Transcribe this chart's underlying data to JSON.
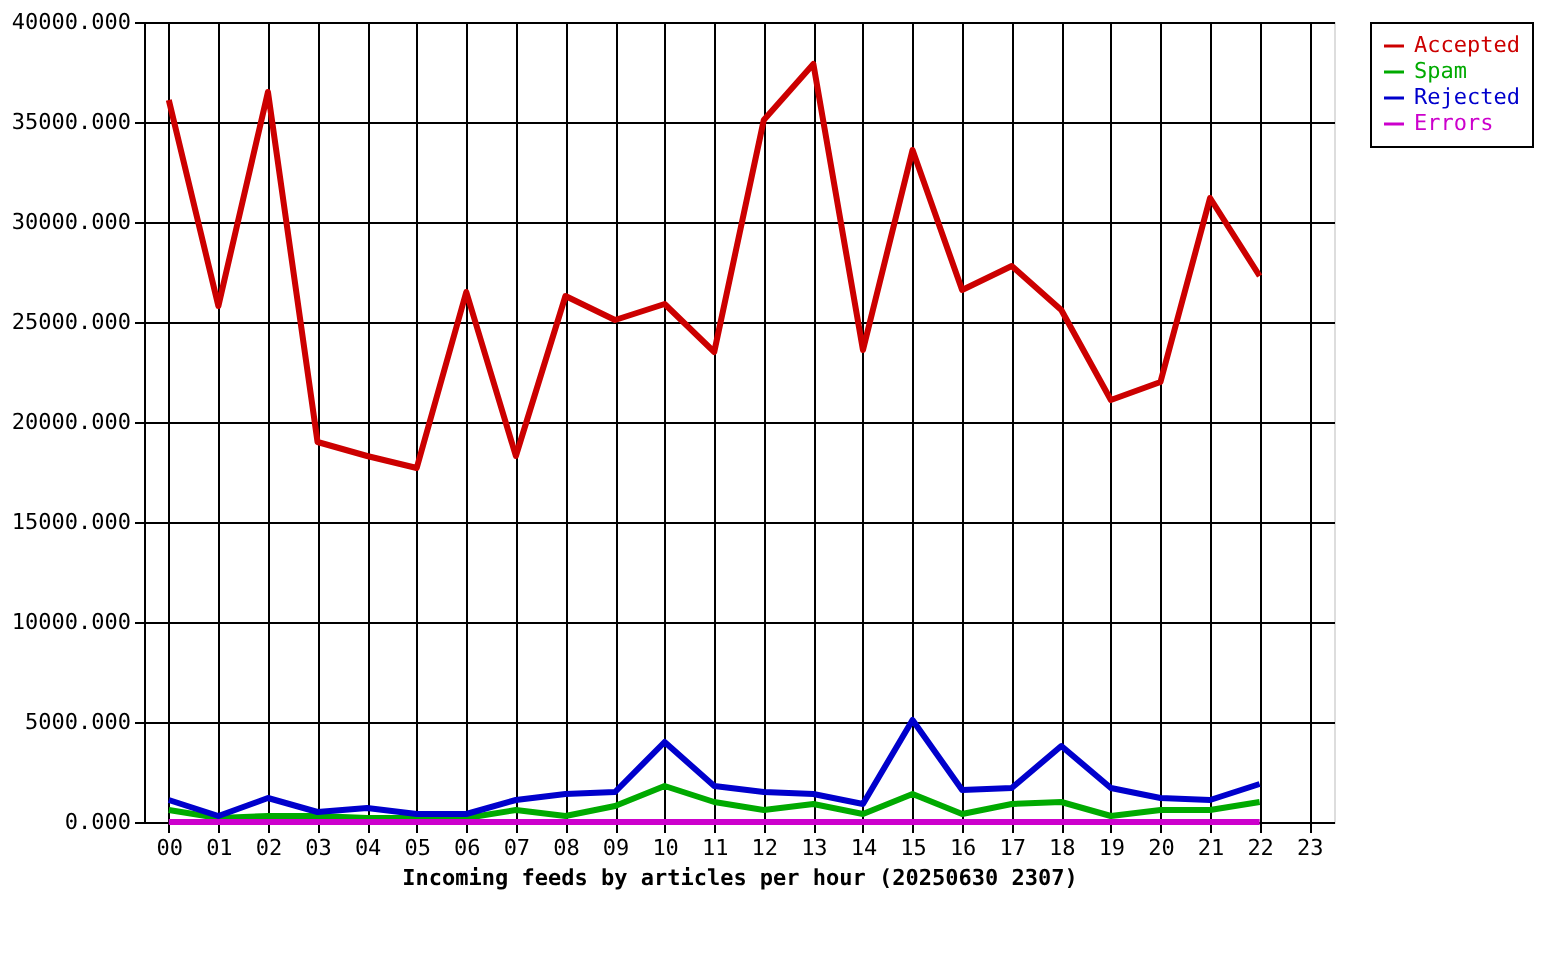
{
  "chart_data": {
    "type": "line",
    "xlabel": "Incoming feeds by articles per hour (20250630 2307)",
    "categories": [
      "00",
      "01",
      "02",
      "03",
      "04",
      "05",
      "06",
      "07",
      "08",
      "09",
      "10",
      "11",
      "12",
      "13",
      "14",
      "15",
      "16",
      "17",
      "18",
      "19",
      "20",
      "21",
      "22",
      "23"
    ],
    "ylim": [
      0,
      40000
    ],
    "yticks": [
      {
        "value": 0,
        "label": "0.000"
      },
      {
        "value": 5000,
        "label": "5000.000"
      },
      {
        "value": 10000,
        "label": "10000.000"
      },
      {
        "value": 15000,
        "label": "15000.000"
      },
      {
        "value": 20000,
        "label": "20000.000"
      },
      {
        "value": 25000,
        "label": "25000.000"
      },
      {
        "value": 30000,
        "label": "30000.000"
      },
      {
        "value": 35000,
        "label": "35000.000"
      },
      {
        "value": 40000,
        "label": "40000.000"
      }
    ],
    "grid": true,
    "legend": "top right",
    "marker": "none",
    "line_style": "solid",
    "series": [
      {
        "name": "Accepted",
        "color": "#cc0000",
        "values": [
          36100,
          25800,
          36500,
          19000,
          18300,
          17700,
          26500,
          18300,
          26300,
          25100,
          25900,
          23500,
          35100,
          37900,
          23600,
          33600,
          26600,
          27800,
          25600,
          21100,
          22000,
          31200,
          27300,
          null
        ]
      },
      {
        "name": "Spam",
        "color": "#00aa00",
        "values": [
          600,
          200,
          300,
          300,
          200,
          200,
          200,
          600,
          300,
          800,
          1800,
          1000,
          600,
          900,
          400,
          1400,
          400,
          900,
          1000,
          300,
          600,
          600,
          1000,
          null
        ]
      },
      {
        "name": "Rejected",
        "color": "#0000cc",
        "values": [
          1100,
          300,
          1200,
          500,
          700,
          400,
          400,
          1100,
          1400,
          1500,
          4000,
          1800,
          1500,
          1400,
          900,
          5100,
          1600,
          1700,
          3800,
          1700,
          1200,
          1100,
          1900,
          null
        ]
      },
      {
        "name": "Errors",
        "color": "#cc00cc",
        "values": [
          0,
          0,
          0,
          0,
          0,
          0,
          0,
          0,
          0,
          0,
          0,
          0,
          0,
          0,
          0,
          0,
          0,
          0,
          0,
          0,
          0,
          0,
          0,
          null
        ]
      }
    ]
  }
}
